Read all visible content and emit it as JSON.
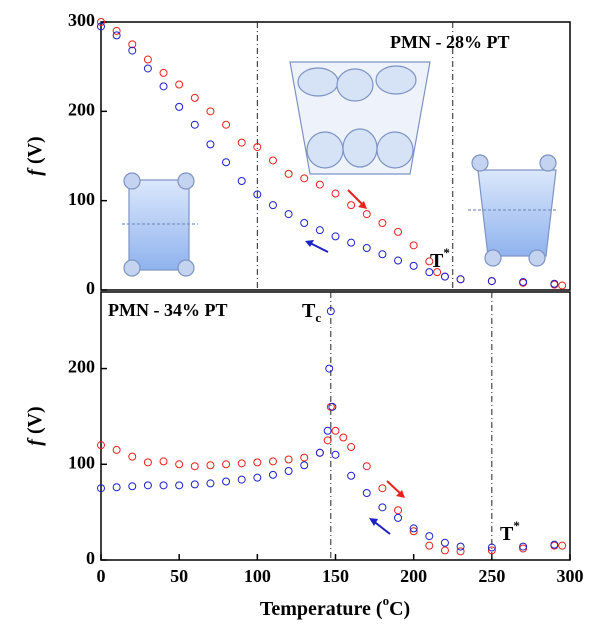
{
  "chart_data": [
    {
      "type": "scatter",
      "sample_label": "PMN - 28% PT",
      "temp_label": {
        "base": "T",
        "sup": "*"
      },
      "y_label": {
        "italic": "f",
        "rest": " (V)"
      },
      "xlim": [
        0,
        300
      ],
      "ylim": [
        0,
        300
      ],
      "yticks": [
        0,
        100,
        200,
        300
      ],
      "vlines": [
        100,
        225
      ],
      "series": [
        {
          "color": "#e8221c",
          "x": [
            0,
            10,
            20,
            30,
            40,
            50,
            60,
            70,
            80,
            90,
            100,
            110,
            120,
            130,
            140,
            150,
            160,
            170,
            180,
            190,
            200,
            210,
            215,
            220,
            230,
            250,
            270,
            290,
            295
          ],
          "values": [
            300,
            290,
            275,
            258,
            243,
            230,
            215,
            200,
            185,
            165,
            160,
            145,
            130,
            125,
            118,
            108,
            95,
            85,
            75,
            65,
            50,
            32,
            20,
            15,
            12,
            10,
            8,
            6,
            5
          ]
        },
        {
          "color": "#1d22c8",
          "x": [
            0,
            10,
            20,
            30,
            40,
            50,
            60,
            70,
            80,
            90,
            100,
            110,
            120,
            130,
            140,
            150,
            160,
            170,
            180,
            190,
            200,
            210,
            220,
            230,
            250,
            270,
            290
          ],
          "values": [
            295,
            285,
            268,
            248,
            228,
            205,
            185,
            163,
            143,
            122,
            107,
            95,
            85,
            75,
            67,
            60,
            53,
            47,
            40,
            33,
            27,
            20,
            15,
            12,
            10,
            9,
            7
          ]
        }
      ]
    },
    {
      "type": "scatter",
      "sample_label": "PMN - 34% PT",
      "temp_label": {
        "base": "T",
        "sup": "*"
      },
      "tc_label": {
        "base": "T",
        "sub": "c"
      },
      "y_label": {
        "italic": "f",
        "rest": " (V)"
      },
      "x_label": {
        "text": "Temperature (",
        "sup": "o",
        "tail": "C)"
      },
      "xlim": [
        0,
        300
      ],
      "xticks": [
        0,
        50,
        100,
        150,
        200,
        250,
        300
      ],
      "ylim": [
        0,
        280
      ],
      "yticks": [
        0,
        100,
        200
      ],
      "vlines": [
        147,
        250
      ],
      "series": [
        {
          "color": "#e8221c",
          "x": [
            0,
            10,
            20,
            30,
            40,
            50,
            60,
            70,
            80,
            90,
            100,
            110,
            120,
            130,
            140,
            145,
            147,
            150,
            155,
            160,
            170,
            180,
            190,
            200,
            210,
            220,
            230,
            250,
            270,
            290,
            295
          ],
          "values": [
            120,
            115,
            108,
            102,
            103,
            100,
            98,
            99,
            100,
            101,
            102,
            103,
            105,
            107,
            112,
            125,
            160,
            135,
            128,
            118,
            98,
            75,
            52,
            30,
            15,
            10,
            9,
            10,
            12,
            15,
            15
          ]
        },
        {
          "color": "#1d22c8",
          "x": [
            0,
            10,
            20,
            30,
            40,
            50,
            60,
            70,
            80,
            90,
            100,
            110,
            120,
            130,
            140,
            145,
            146,
            147,
            148,
            150,
            160,
            170,
            180,
            190,
            200,
            210,
            220,
            230,
            250,
            270,
            290
          ],
          "values": [
            75,
            76,
            77,
            78,
            78,
            78,
            79,
            80,
            82,
            84,
            86,
            89,
            93,
            99,
            112,
            135,
            200,
            260,
            160,
            110,
            88,
            70,
            55,
            44,
            33,
            25,
            18,
            14,
            13,
            14,
            16
          ]
        }
      ]
    }
  ]
}
